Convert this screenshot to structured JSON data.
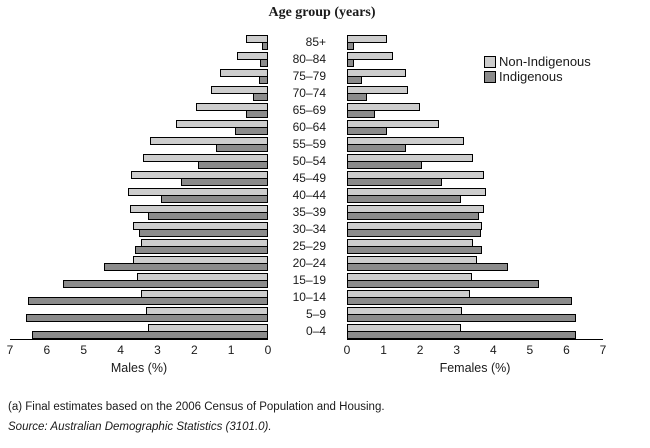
{
  "colors": {
    "non_indigenous": "#cdcdcd",
    "indigenous": "#8b8b8b",
    "bar_border": "#000000"
  },
  "legend": [
    {
      "label": "Non-Indigenous",
      "color_key": "non_indigenous"
    },
    {
      "label": "Indigenous",
      "color_key": "indigenous"
    }
  ],
  "footnote": "(a) Final estimates based on the 2006 Census of Population and Housing.",
  "source": "Source: Australian Demographic Statistics (3101.0).",
  "chart_data": {
    "type": "bar",
    "subtype": "population-pyramid",
    "title": "Age group (years)",
    "categories": [
      "85+",
      "80–84",
      "75–79",
      "70–74",
      "65–69",
      "60–64",
      "55–59",
      "50–54",
      "45–49",
      "40–44",
      "35–39",
      "30–34",
      "25–29",
      "20–24",
      "15–19",
      "10–14",
      "5–9",
      "0–4"
    ],
    "axis": {
      "min": 0,
      "max": 7,
      "ticks": [
        0,
        1,
        2,
        3,
        4,
        5,
        6,
        7
      ],
      "male_label": "Males (%)",
      "female_label": "Females (%)"
    },
    "legend_position": "top-right",
    "grid": false,
    "series": [
      {
        "name": "Males Non-Indigenous",
        "side": "left",
        "color_key": "non_indigenous",
        "values": [
          0.55,
          0.8,
          1.25,
          1.5,
          1.9,
          2.45,
          3.15,
          3.35,
          3.65,
          3.75,
          3.7,
          3.6,
          3.4,
          3.6,
          3.5,
          3.4,
          3.25,
          3.2
        ]
      },
      {
        "name": "Males Indigenous",
        "side": "left",
        "color_key": "indigenous",
        "values": [
          0.1,
          0.15,
          0.2,
          0.35,
          0.55,
          0.85,
          1.35,
          1.85,
          2.3,
          2.85,
          3.2,
          3.45,
          3.55,
          4.4,
          5.5,
          6.45,
          6.5,
          6.35
        ]
      },
      {
        "name": "Females Non-Indigenous",
        "side": "right",
        "color_key": "non_indigenous",
        "values": [
          1.05,
          1.2,
          1.55,
          1.6,
          1.95,
          2.45,
          3.15,
          3.4,
          3.7,
          3.75,
          3.7,
          3.65,
          3.4,
          3.5,
          3.35,
          3.3,
          3.1,
          3.05
        ]
      },
      {
        "name": "Females Indigenous",
        "side": "right",
        "color_key": "indigenous",
        "values": [
          0.15,
          0.15,
          0.35,
          0.5,
          0.7,
          1.05,
          1.55,
          2.0,
          2.55,
          3.05,
          3.55,
          3.6,
          3.65,
          4.35,
          5.2,
          6.1,
          6.2,
          6.2
        ]
      }
    ]
  }
}
